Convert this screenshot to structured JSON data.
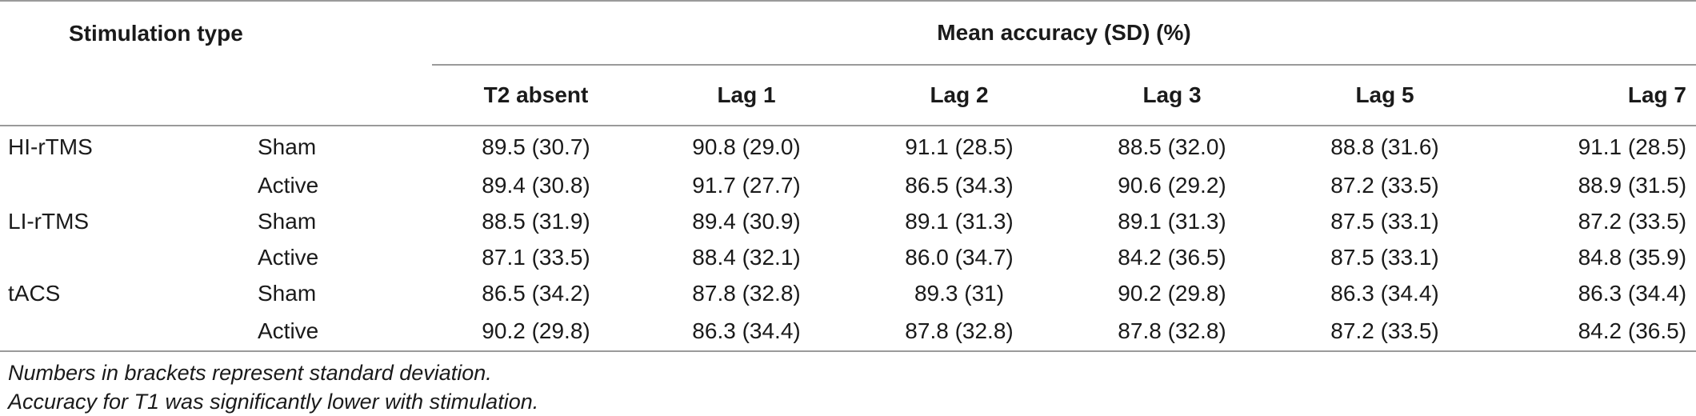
{
  "table": {
    "header": {
      "stimulation_type": "Stimulation type",
      "mean_accuracy": "Mean accuracy (SD) (%)"
    },
    "columns": [
      "T2 absent",
      "Lag 1",
      "Lag 2",
      "Lag 3",
      "Lag 5",
      "Lag 7"
    ],
    "rows": [
      {
        "type": "HI-rTMS",
        "condition": "Sham",
        "values": [
          "89.5 (30.7)",
          "90.8 (29.0)",
          "91.1 (28.5)",
          "88.5 (32.0)",
          "88.8 (31.6)",
          "91.1 (28.5)"
        ]
      },
      {
        "type": "",
        "condition": "Active",
        "values": [
          "89.4 (30.8)",
          "91.7 (27.7)",
          "86.5 (34.3)",
          "90.6 (29.2)",
          "87.2 (33.5)",
          "88.9 (31.5)"
        ]
      },
      {
        "type": "LI-rTMS",
        "condition": "Sham",
        "values": [
          "88.5 (31.9)",
          "89.4 (30.9)",
          "89.1 (31.3)",
          "89.1 (31.3)",
          "87.5 (33.1)",
          "87.2 (33.5)"
        ]
      },
      {
        "type": "",
        "condition": "Active",
        "values": [
          "87.1 (33.5)",
          "88.4 (32.1)",
          "86.0 (34.7)",
          "84.2 (36.5)",
          "87.5 (33.1)",
          "84.8 (35.9)"
        ]
      },
      {
        "type": "tACS",
        "condition": "Sham",
        "values": [
          "86.5 (34.2)",
          "87.8 (32.8)",
          "89.3 (31)",
          "90.2 (29.8)",
          "86.3 (34.4)",
          "86.3 (34.4)"
        ]
      },
      {
        "type": "",
        "condition": "Active",
        "values": [
          "90.2 (29.8)",
          "86.3 (34.4)",
          "87.8 (32.8)",
          "87.8 (32.8)",
          "87.2 (33.5)",
          "84.2 (36.5)"
        ]
      }
    ]
  },
  "notes": [
    "Numbers in brackets represent standard deviation.",
    "Accuracy for T1 was significantly lower with stimulation."
  ]
}
